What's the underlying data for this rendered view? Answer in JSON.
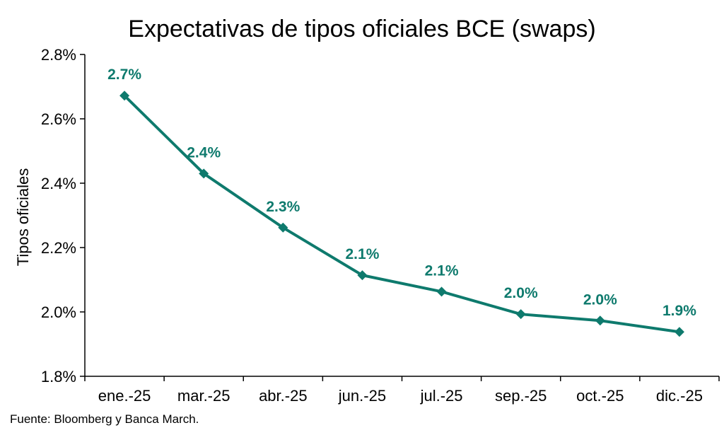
{
  "chart_data": {
    "type": "line",
    "title": "Expectativas de tipos oficiales BCE (swaps)",
    "xlabel": "",
    "ylabel": "Tipos oficiales",
    "categories": [
      "ene.-25",
      "mar.-25",
      "abr.-25",
      "jun.-25",
      "jul.-25",
      "sep.-25",
      "oct.-25",
      "dic.-25"
    ],
    "series": [
      {
        "name": "Tipos oficiales",
        "values": [
          2.672,
          2.43,
          2.262,
          2.114,
          2.063,
          1.993,
          1.973,
          1.938
        ],
        "labels": [
          "2.7%",
          "2.4%",
          "2.3%",
          "2.1%",
          "2.1%",
          "2.0%",
          "2.0%",
          "1.9%"
        ],
        "color": "#0e7a6d"
      }
    ],
    "ylim": [
      1.8,
      2.8
    ],
    "yticks": [
      1.8,
      2.0,
      2.2,
      2.4,
      2.6,
      2.8
    ],
    "ytick_labels": [
      "1.8%",
      "2.0%",
      "2.2%",
      "2.4%",
      "2.6%",
      "2.8%"
    ],
    "grid": false,
    "legend": "none"
  },
  "source": "Fuente: Bloomberg y Banca March."
}
